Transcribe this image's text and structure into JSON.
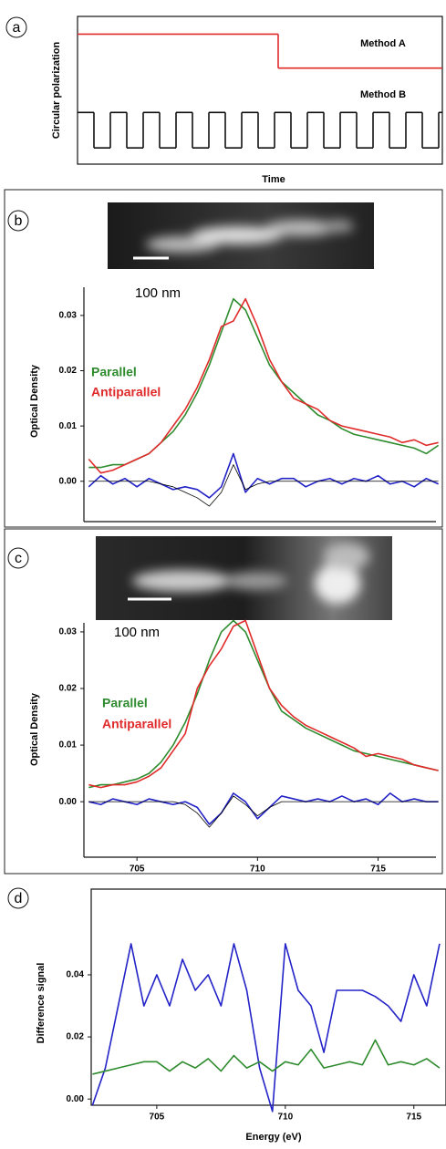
{
  "chart_data": [
    {
      "type": "step",
      "panel_label": "a",
      "ylabel": "Circular polarization",
      "xlabel": "Time",
      "xlim": [
        0,
        100
      ],
      "ylim": [
        0,
        1
      ],
      "series": [
        {
          "name": "Method A",
          "color": "#e02a2a",
          "x": [
            0,
            55
          ],
          "values": [
            0.88,
            0.65
          ]
        },
        {
          "name": "Method B",
          "color": "#111111",
          "x": [
            0,
            4.5,
            9,
            13.5,
            18,
            22.5,
            27,
            31.5,
            36,
            40.5,
            45,
            49.5,
            54,
            58.5,
            63,
            67.5,
            72,
            76.5,
            81,
            85.5,
            90,
            94.5,
            99
          ],
          "values": [
            0.35,
            0.11,
            0.35,
            0.11,
            0.35,
            0.11,
            0.35,
            0.11,
            0.35,
            0.11,
            0.35,
            0.11,
            0.35,
            0.11,
            0.35,
            0.11,
            0.35,
            0.11,
            0.35,
            0.11,
            0.35,
            0.11,
            0.35
          ]
        }
      ]
    },
    {
      "type": "line",
      "panel_label": "b",
      "ylabel": "Optical Density",
      "scale_label": "100 nm",
      "xlim": [
        702.8,
        717.4
      ],
      "ylim": [
        -0.0073,
        0.0351
      ],
      "yticks": [
        {
          "value": 0,
          "label": "0.00"
        },
        0.01,
        0.02,
        0.03
      ],
      "x": [
        703,
        703.5,
        704,
        704.5,
        705,
        705.5,
        706,
        706.5,
        707,
        707.5,
        708,
        708.5,
        709,
        709.5,
        710,
        710.5,
        711,
        711.5,
        712,
        712.5,
        713,
        713.5,
        714,
        714.5,
        715,
        715.5,
        716,
        716.5,
        717,
        717.5
      ],
      "series": [
        {
          "name": "Parallel",
          "color": "#2e8b2e",
          "values": [
            0.0025,
            0.0025,
            0.003,
            0.003,
            0.004,
            0.005,
            0.007,
            0.009,
            0.012,
            0.016,
            0.021,
            0.027,
            0.033,
            0.031,
            0.026,
            0.021,
            0.018,
            0.016,
            0.014,
            0.012,
            0.011,
            0.0095,
            0.0085,
            0.008,
            0.0075,
            0.007,
            0.0065,
            0.006,
            0.005,
            0.0065
          ]
        },
        {
          "name": "Antiparallel",
          "color": "#e02a2a",
          "values": [
            0.004,
            0.0015,
            0.002,
            0.003,
            0.004,
            0.005,
            0.007,
            0.01,
            0.013,
            0.017,
            0.022,
            0.028,
            0.029,
            0.033,
            0.028,
            0.022,
            0.018,
            0.015,
            0.014,
            0.013,
            0.011,
            0.01,
            0.0095,
            0.009,
            0.0085,
            0.008,
            0.007,
            0.0075,
            0.0065,
            0.007
          ]
        },
        {
          "color": "#2323c8",
          "values": [
            -0.001,
            0.001,
            -0.0005,
            0.0005,
            -0.001,
            0.0005,
            -0.0005,
            -0.0015,
            -0.001,
            -0.0015,
            -0.003,
            -0.001,
            0.005,
            -0.002,
            0.0005,
            -0.0005,
            0.0005,
            0.0005,
            -0.001,
            0,
            0.0005,
            -0.0005,
            0.0005,
            0,
            0.001,
            -0.0005,
            0,
            -0.001,
            0.0005,
            -0.0005
          ]
        },
        {
          "color": "#000000",
          "values": [
            0,
            0,
            0,
            0,
            0,
            0,
            -0.0005,
            -0.001,
            -0.002,
            -0.003,
            -0.0045,
            -0.002,
            0.003,
            -0.0015,
            -0.0005,
            0,
            0,
            0,
            0,
            0,
            0,
            0,
            0,
            0,
            0,
            0,
            0,
            0,
            0,
            0
          ]
        }
      ]
    },
    {
      "type": "line",
      "panel_label": "c",
      "ylabel": "Optical Density",
      "scale_label": "100 nm",
      "xlim": [
        702.8,
        717.4
      ],
      "ylim": [
        -0.0098,
        0.0316
      ],
      "xticks": [
        705,
        710,
        715
      ],
      "yticks": [
        {
          "value": 0,
          "label": "0.00"
        },
        0.01,
        0.02,
        0.03
      ],
      "x": [
        703,
        703.5,
        704,
        704.5,
        705,
        705.5,
        706,
        706.5,
        707,
        707.5,
        708,
        708.5,
        709,
        709.5,
        710,
        710.5,
        711,
        711.5,
        712,
        712.5,
        713,
        713.5,
        714,
        714.5,
        715,
        715.5,
        716,
        716.5,
        717,
        717.5
      ],
      "series": [
        {
          "name": "Parallel",
          "color": "#2e8b2e",
          "values": [
            0.0025,
            0.003,
            0.003,
            0.0035,
            0.004,
            0.005,
            0.007,
            0.01,
            0.014,
            0.019,
            0.025,
            0.03,
            0.032,
            0.03,
            0.025,
            0.02,
            0.016,
            0.0145,
            0.013,
            0.012,
            0.011,
            0.01,
            0.009,
            0.0085,
            0.008,
            0.0075,
            0.007,
            0.0065,
            0.006,
            0.0055
          ]
        },
        {
          "name": "Antiparallel",
          "color": "#e02a2a",
          "values": [
            0.003,
            0.0025,
            0.003,
            0.003,
            0.0035,
            0.0045,
            0.006,
            0.009,
            0.012,
            0.02,
            0.024,
            0.027,
            0.031,
            0.032,
            0.026,
            0.02,
            0.017,
            0.015,
            0.0135,
            0.0125,
            0.0115,
            0.0105,
            0.0095,
            0.008,
            0.0085,
            0.008,
            0.0075,
            0.0065,
            0.006,
            0.0055
          ]
        },
        {
          "color": "#2323c8",
          "values": [
            0,
            -0.0005,
            0.0005,
            0,
            -0.0005,
            0.0005,
            0,
            -0.0005,
            0,
            -0.001,
            -0.004,
            -0.002,
            0.0015,
            0,
            -0.003,
            -0.001,
            0.001,
            0.0005,
            0,
            0.0005,
            0,
            0.001,
            0,
            0.0005,
            -0.0005,
            0.0015,
            0,
            0.0005,
            0,
            0
          ]
        },
        {
          "color": "#000000",
          "values": [
            0,
            0,
            0,
            0,
            0,
            0,
            0,
            0,
            -0.0005,
            -0.002,
            -0.0045,
            -0.002,
            0.001,
            -0.0005,
            -0.0025,
            -0.001,
            0,
            0,
            0,
            0,
            0,
            0,
            0,
            0,
            0,
            0,
            0,
            0,
            0,
            0
          ]
        }
      ]
    },
    {
      "type": "line",
      "panel_label": "d",
      "ylabel": "Difference signal",
      "xlabel": "Energy (eV)",
      "xlim": [
        702.45,
        716.25
      ],
      "ylim": [
        -0.002,
        0.0676
      ],
      "xticks": [
        705,
        710,
        715
      ],
      "yticks": [
        {
          "value": 0,
          "label": "0.00"
        },
        0.02,
        0.04
      ],
      "x": [
        702.5,
        703,
        703.5,
        704,
        704.5,
        705,
        705.5,
        706,
        706.5,
        707,
        707.5,
        708,
        708.5,
        709,
        709.5,
        710,
        710.5,
        711,
        711.5,
        712,
        712.5,
        713,
        713.5,
        714,
        714.5,
        715,
        715.5,
        716
      ],
      "series": [
        {
          "color": "#2323c8",
          "values": [
            -0.002,
            0.01,
            0.03,
            0.05,
            0.03,
            0.04,
            0.03,
            0.045,
            0.035,
            0.04,
            0.03,
            0.05,
            0.035,
            0.01,
            -0.004,
            0.05,
            0.035,
            0.03,
            0.015,
            0.035,
            0.035,
            0.035,
            0.033,
            0.03,
            0.025,
            0.04,
            0.03,
            0.05
          ]
        },
        {
          "color": "#2e8b2e",
          "values": [
            0.008,
            0.009,
            0.01,
            0.011,
            0.012,
            0.012,
            0.009,
            0.012,
            0.01,
            0.013,
            0.009,
            0.014,
            0.01,
            0.012,
            0.009,
            0.012,
            0.011,
            0.016,
            0.01,
            0.011,
            0.012,
            0.011,
            0.019,
            0.011,
            0.012,
            0.011,
            0.013,
            0.01
          ]
        }
      ]
    }
  ]
}
